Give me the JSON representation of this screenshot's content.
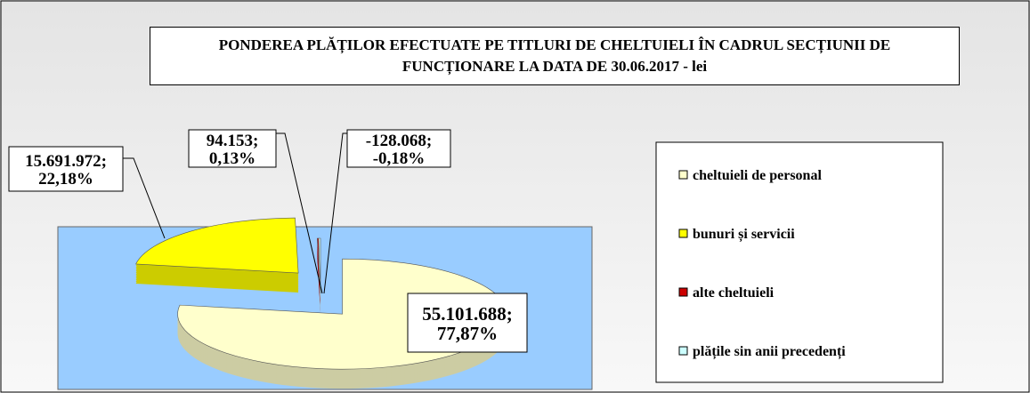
{
  "chart_data": {
    "type": "pie",
    "title": "PONDEREA PLĂȚILOR EFECTUATE PE TITLURI DE CHELTUIELI ÎN CADRUL SECȚIUNII DE FUNCȚIONARE LA DATA DE 30.06.2017 - lei",
    "categories": [
      "cheltuieli de personal",
      "bunuri și servicii",
      "alte cheltuieli",
      "plățile sin anii precedenți"
    ],
    "values": [
      55101688,
      15691972,
      94153,
      -128068
    ],
    "value_labels": [
      "55.101.688;",
      "15.691.972;",
      "94.153;",
      "-128.068;"
    ],
    "percents": [
      77.87,
      22.18,
      0.13,
      -0.18
    ],
    "percent_labels": [
      "77,87%",
      "22,18%",
      "0,13%",
      "-0,18%"
    ],
    "colors": [
      "#ffffcc",
      "#ffff00",
      "#cc0000",
      "#ccffff"
    ],
    "legend": "right"
  }
}
